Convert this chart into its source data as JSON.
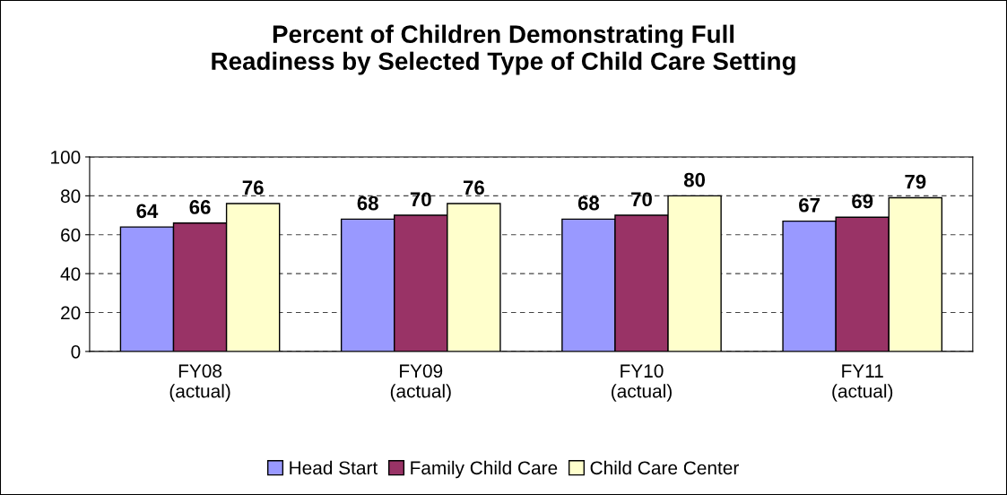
{
  "chart_data": {
    "type": "bar",
    "title": "Percent of Children Demonstrating Full\nReadiness by Selected Type of Child Care Setting",
    "categories": [
      "FY08\n(actual)",
      "FY09\n(actual)",
      "FY10\n(actual)",
      "FY11\n(actual)"
    ],
    "series": [
      {
        "name": "Head Start",
        "color": "#9999ff",
        "values": [
          64,
          68,
          68,
          67
        ]
      },
      {
        "name": "Family Child Care",
        "color": "#993366",
        "values": [
          66,
          70,
          70,
          69
        ]
      },
      {
        "name": "Child Care Center",
        "color": "#ffffcc",
        "values": [
          76,
          76,
          80,
          79
        ]
      }
    ],
    "ylim": [
      0,
      100
    ],
    "yticks": [
      0,
      20,
      40,
      60,
      80,
      100
    ],
    "grid": "y",
    "legend": "bottom",
    "data_labels": true
  }
}
